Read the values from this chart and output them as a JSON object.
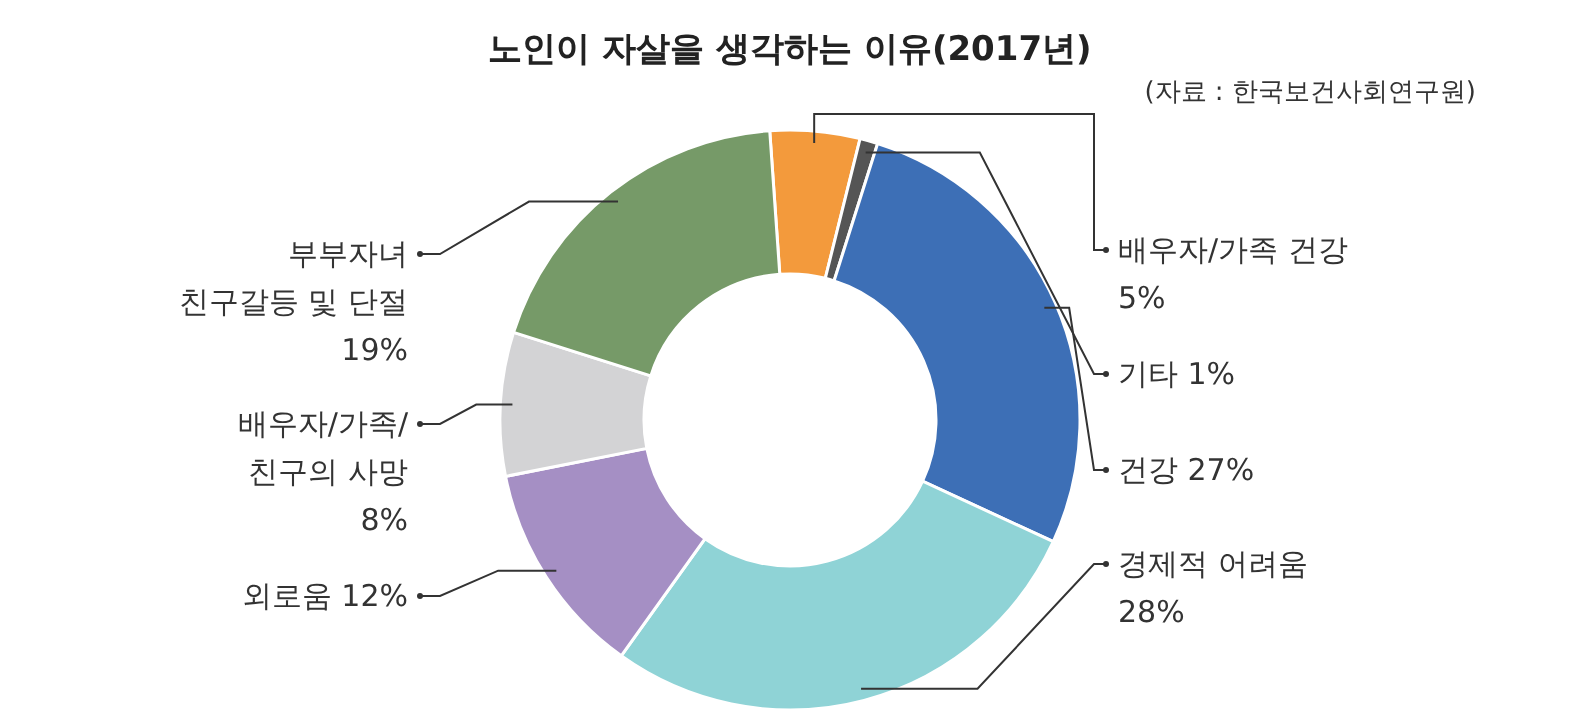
{
  "chart_data": {
    "type": "donut",
    "title": "노인이 자살을 생각하는 이유(2017년)",
    "annotations": [
      "(자료 : 한국보건사회연구원)"
    ],
    "categories": [
      "배우자/가족 건강",
      "기타",
      "건강",
      "경제적 어려움",
      "외로움",
      "배우자/가족/\n친구의 사망",
      "부부자녀\n친구갈등 및 단절"
    ],
    "values": [
      5,
      1,
      27,
      28,
      12,
      8,
      19
    ],
    "value_labels": [
      "5%",
      "1%",
      "27%",
      "28%",
      "12%",
      "8%",
      "19%"
    ],
    "colors": [
      "#f39a3c",
      "#555555",
      "#3d6fb6",
      "#8fd3d6",
      "#a58fc4",
      "#d3d3d5",
      "#769a68"
    ]
  }
}
